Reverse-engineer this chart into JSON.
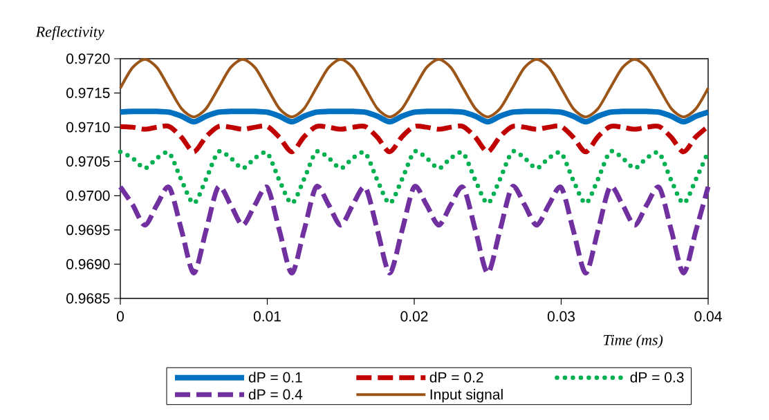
{
  "chart_data": {
    "type": "line",
    "xlabel": "Time (ms)",
    "ylabel": "Reflectivity",
    "legend": "bottom",
    "xlim": [
      0,
      0.04
    ],
    "xticks": [
      0,
      0.01,
      0.02,
      0.03,
      0.04
    ],
    "ylim": [
      0.9685,
      0.972
    ],
    "yticks": [
      {
        "value": 0.9685,
        "label": "0.9685"
      },
      {
        "value": 0.969,
        "label": "0.9690"
      },
      {
        "value": 0.9695,
        "label": "0.9695"
      },
      {
        "value": 0.97,
        "label": "0.9700"
      },
      {
        "value": 0.9705,
        "label": "0.9705"
      },
      {
        "value": 0.971,
        "label": "0.9710"
      },
      {
        "value": 0.9715,
        "label": "0.9715"
      },
      {
        "value": 0.972,
        "label": "0.9720"
      }
    ],
    "x": [
      0,
      0.00083,
      0.00167,
      0.0025,
      0.00333,
      0.00417,
      0.005,
      0.00583,
      0.00667,
      0.0075,
      0.00833,
      0.00917,
      0.01,
      0.01083,
      0.01167,
      0.0125,
      0.01333,
      0.01417,
      0.015,
      0.01583,
      0.01667,
      0.0175,
      0.01833,
      0.01917,
      0.02,
      0.02083,
      0.02167,
      0.0225,
      0.02333,
      0.02417,
      0.025,
      0.02583,
      0.02667,
      0.0275,
      0.02833,
      0.02917,
      0.03,
      0.03083,
      0.03167,
      0.0325,
      0.03333,
      0.03417,
      0.035,
      0.03583,
      0.03667,
      0.0375,
      0.03833,
      0.03917,
      0.04
    ],
    "series": [
      {
        "name": "dP = 0.1",
        "color": "#0070c0",
        "line_style": "solid",
        "values": [
          0.97122,
          0.97123,
          0.97123,
          0.97123,
          0.97122,
          0.97116,
          0.97108,
          0.97116,
          0.97122,
          0.97123,
          0.97123,
          0.97123,
          0.97122,
          0.97116,
          0.97108,
          0.97116,
          0.97122,
          0.97123,
          0.97123,
          0.97123,
          0.97122,
          0.97116,
          0.97108,
          0.97116,
          0.97122,
          0.97123,
          0.97123,
          0.97123,
          0.97122,
          0.97116,
          0.97108,
          0.97116,
          0.97122,
          0.97123,
          0.97123,
          0.97123,
          0.97122,
          0.97116,
          0.97108,
          0.97116,
          0.97122,
          0.97123,
          0.97123,
          0.97123,
          0.97122,
          0.97116,
          0.97108,
          0.97116,
          0.97122
        ]
      },
      {
        "name": "dP = 0.2",
        "color": "#c00000",
        "line_style": "dashed",
        "values": [
          0.97101,
          0.971,
          0.97097,
          0.971,
          0.97101,
          0.97085,
          0.97064,
          0.97086,
          0.97101,
          0.971,
          0.97097,
          0.971,
          0.97101,
          0.97085,
          0.97064,
          0.97086,
          0.97101,
          0.971,
          0.97097,
          0.971,
          0.97101,
          0.97085,
          0.97064,
          0.97086,
          0.97101,
          0.971,
          0.97097,
          0.971,
          0.97101,
          0.97085,
          0.97064,
          0.97086,
          0.97101,
          0.971,
          0.97097,
          0.971,
          0.97101,
          0.97085,
          0.97064,
          0.97086,
          0.97101,
          0.971,
          0.97097,
          0.971,
          0.97101,
          0.97085,
          0.97064,
          0.97086,
          0.97101
        ]
      },
      {
        "name": "dP = 0.3",
        "color": "#00b050",
        "line_style": "dotted",
        "values": [
          0.97064,
          0.97055,
          0.9704,
          0.97055,
          0.97062,
          0.97022,
          0.96989,
          0.97024,
          0.97064,
          0.97055,
          0.9704,
          0.97055,
          0.97062,
          0.97022,
          0.96989,
          0.97024,
          0.97064,
          0.97055,
          0.9704,
          0.97055,
          0.97062,
          0.97022,
          0.96989,
          0.97024,
          0.97064,
          0.97055,
          0.9704,
          0.97055,
          0.97062,
          0.97022,
          0.96989,
          0.97024,
          0.97064,
          0.97055,
          0.9704,
          0.97055,
          0.97062,
          0.97022,
          0.96989,
          0.97024,
          0.97064,
          0.97055,
          0.9704,
          0.97055,
          0.97062,
          0.97022,
          0.96989,
          0.97024,
          0.97064
        ]
      },
      {
        "name": "dP = 0.4",
        "color": "#7030a0",
        "line_style": "dashed",
        "values": [
          0.97013,
          0.96987,
          0.96957,
          0.96987,
          0.97012,
          0.96949,
          0.96887,
          0.96949,
          0.97013,
          0.96987,
          0.96957,
          0.96987,
          0.97012,
          0.96949,
          0.96887,
          0.96949,
          0.97013,
          0.96987,
          0.96957,
          0.96987,
          0.97012,
          0.96949,
          0.96887,
          0.96949,
          0.97013,
          0.96987,
          0.96957,
          0.96987,
          0.97012,
          0.96949,
          0.96887,
          0.96949,
          0.97013,
          0.96987,
          0.96957,
          0.96987,
          0.97012,
          0.96949,
          0.96887,
          0.96949,
          0.97013,
          0.96987,
          0.96957,
          0.96987,
          0.97012,
          0.96949,
          0.96887,
          0.96949,
          0.97013
        ]
      },
      {
        "name": "Input signal",
        "color": "#9c5518",
        "line_style": "solid",
        "values": [
          0.97157,
          0.97187,
          0.97199,
          0.97187,
          0.97157,
          0.97127,
          0.97115,
          0.97127,
          0.97157,
          0.97187,
          0.97199,
          0.97187,
          0.97157,
          0.97127,
          0.97115,
          0.97127,
          0.97157,
          0.97187,
          0.97199,
          0.97187,
          0.97157,
          0.97127,
          0.97115,
          0.97127,
          0.97157,
          0.97187,
          0.97199,
          0.97187,
          0.97157,
          0.97127,
          0.97115,
          0.97127,
          0.97157,
          0.97187,
          0.97199,
          0.97187,
          0.97157,
          0.97127,
          0.97115,
          0.97127,
          0.97157,
          0.97187,
          0.97199,
          0.97187,
          0.97157,
          0.97127,
          0.97115,
          0.97127,
          0.97157
        ]
      }
    ]
  }
}
